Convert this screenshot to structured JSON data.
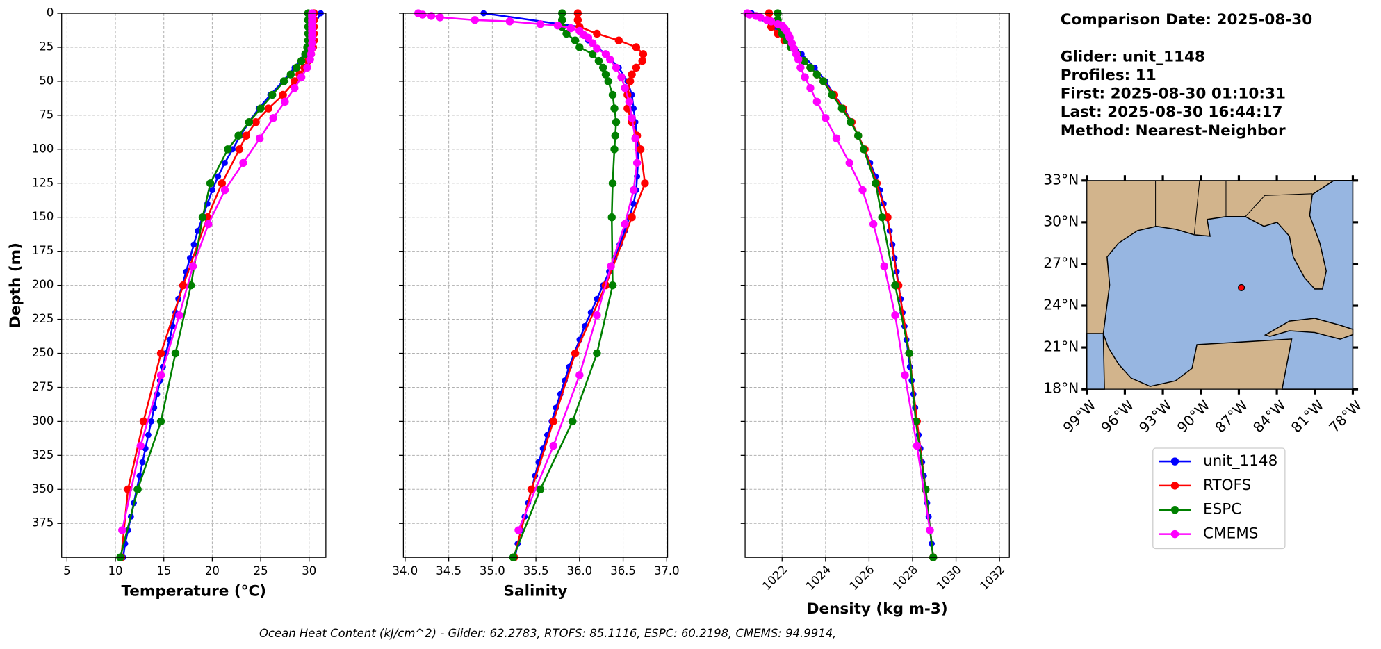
{
  "chart_data": [
    {
      "type": "line",
      "xlabel": "Temperature (°C)",
      "ylabel": "Depth (m)",
      "xlim": [
        4.45,
        31.73
      ],
      "xticks": [
        5,
        10,
        15,
        20,
        25,
        30
      ],
      "ylim": [
        400,
        0
      ],
      "yticks": [
        0,
        25,
        50,
        75,
        100,
        125,
        150,
        175,
        200,
        225,
        250,
        275,
        300,
        325,
        350,
        375
      ],
      "ytick_labels": true,
      "grid": true,
      "xtick_rotation": 0,
      "series": [
        {
          "name": "unit_1148",
          "color": "#0000ff",
          "y": [
            0,
            10,
            20,
            30,
            40,
            50,
            60,
            70,
            80,
            90,
            100,
            110,
            120,
            130,
            140,
            150,
            160,
            170,
            180,
            190,
            200,
            210,
            220,
            230,
            240,
            250,
            260,
            270,
            280,
            290,
            300,
            310,
            320,
            330,
            340,
            350,
            360,
            370,
            380,
            390,
            400
          ],
          "values": [
            31.2,
            30.4,
            30.2,
            29.5,
            28.5,
            27.3,
            26,
            24.8,
            23.8,
            22.9,
            22.1,
            21.3,
            20.6,
            20,
            19.5,
            19,
            18.5,
            18.1,
            17.7,
            17.3,
            16.9,
            16.5,
            16.2,
            15.9,
            15.6,
            15.2,
            14.9,
            14.6,
            14.3,
            14,
            13.7,
            13.4,
            13.1,
            12.8,
            12.5,
            12.2,
            11.9,
            11.6,
            11.3,
            11.0,
            10.8
          ]
        },
        {
          "name": "RTOFS",
          "color": "#ff0000",
          "y": [
            0,
            5,
            10,
            15,
            20,
            25,
            30,
            35,
            40,
            45,
            50,
            60,
            70,
            80,
            90,
            100,
            125,
            150,
            200,
            250,
            300,
            350,
            400
          ],
          "values": [
            30.5,
            30.5,
            30.5,
            30.5,
            30.5,
            30.4,
            30.2,
            29.9,
            29.5,
            29.0,
            28.5,
            27.3,
            25.8,
            24.5,
            23.5,
            22.8,
            21,
            19.5,
            17,
            14.7,
            12.9,
            11.3,
            10.6
          ]
        },
        {
          "name": "ESPC",
          "color": "#008000",
          "y": [
            0,
            5,
            10,
            15,
            20,
            25,
            30,
            35,
            40,
            45,
            50,
            60,
            70,
            80,
            90,
            100,
            125,
            150,
            200,
            250,
            300,
            350,
            400
          ],
          "values": [
            29.9,
            29.9,
            29.9,
            29.9,
            29.9,
            29.8,
            29.6,
            29.2,
            28.7,
            28.1,
            27.4,
            26.2,
            25,
            23.8,
            22.7,
            21.6,
            19.8,
            19,
            17.8,
            16.2,
            14.7,
            12.3,
            10.5
          ]
        },
        {
          "name": "CMEMS",
          "color": "#ff00ff",
          "y": [
            0,
            1,
            2,
            3,
            5,
            6,
            8,
            9,
            11,
            13,
            16,
            18,
            22,
            26,
            30,
            34,
            40,
            47,
            55,
            65,
            77,
            92,
            110,
            130,
            155,
            186,
            222,
            266,
            318,
            380
          ],
          "values": [
            30.3,
            30.3,
            30.3,
            30.3,
            30.3,
            30.3,
            30.3,
            30.3,
            30.3,
            30.3,
            30.3,
            30.3,
            30.3,
            30.25,
            30.2,
            30.1,
            29.8,
            29.2,
            28.5,
            27.5,
            26.3,
            24.9,
            23.2,
            21.3,
            19.6,
            18,
            16.6,
            14.7,
            12.6,
            10.7
          ]
        }
      ]
    },
    {
      "type": "line",
      "xlabel": "Salinity",
      "xlim": [
        33.98,
        37.01
      ],
      "xticks": [
        {
          "value": 34,
          "label": "34.0"
        },
        34.5,
        {
          "value": 35,
          "label": "35.0"
        },
        35.5,
        {
          "value": 36,
          "label": "36.0"
        },
        36.5,
        {
          "value": 37,
          "label": "37.0"
        }
      ],
      "ylim": [
        400,
        0
      ],
      "yticks": [
        0,
        25,
        50,
        75,
        100,
        125,
        150,
        175,
        200,
        225,
        250,
        275,
        300,
        325,
        350,
        375
      ],
      "ytick_labels": false,
      "grid": true,
      "xtick_rotation": 0,
      "series": [
        {
          "color": "#0000ff",
          "values": [
            34.9,
            36.0,
            36.1,
            36.3,
            36.45,
            36.55,
            36.6,
            36.62,
            36.64,
            36.66,
            36.67,
            36.67,
            36.66,
            36.65,
            36.62,
            36.57,
            36.52,
            36.46,
            36.4,
            36.34,
            36.27,
            36.2,
            36.13,
            36.06,
            36.0,
            35.94,
            35.88,
            35.83,
            35.78,
            35.73,
            35.68,
            35.63,
            35.58,
            35.53,
            35.49,
            35.45,
            35.41,
            35.37,
            35.33,
            35.29,
            35.26
          ]
        },
        {
          "color": "#ff0000",
          "values": [
            35.98,
            35.98,
            36.0,
            36.2,
            36.45,
            36.65,
            36.73,
            36.72,
            36.65,
            36.6,
            36.58,
            36.55,
            36.55,
            36.6,
            36.66,
            36.7,
            36.75,
            36.6,
            36.3,
            35.95,
            35.7,
            35.45,
            35.25
          ]
        },
        {
          "color": "#008000",
          "values": [
            35.8,
            35.8,
            35.8,
            35.85,
            35.95,
            36.0,
            36.15,
            36.22,
            36.27,
            36.3,
            36.33,
            36.38,
            36.4,
            36.42,
            36.41,
            36.4,
            36.38,
            36.37,
            36.38,
            36.2,
            35.92,
            35.55,
            35.24
          ]
        },
        {
          "color": "#ff00ff",
          "values": [
            34.15,
            34.2,
            34.3,
            34.4,
            34.8,
            35.2,
            35.55,
            35.75,
            35.9,
            36.0,
            36.05,
            36.1,
            36.15,
            36.2,
            36.3,
            36.35,
            36.42,
            36.48,
            36.52,
            36.57,
            36.6,
            36.64,
            36.66,
            36.62,
            36.52,
            36.36,
            36.2,
            36.0,
            35.7,
            35.3
          ]
        }
      ]
    },
    {
      "type": "line",
      "xlabel": "Density (kg m-3)",
      "xlim": [
        1020.3,
        1032.45
      ],
      "xticks": [
        1022,
        1024,
        1026,
        1028,
        1030,
        1032
      ],
      "ylim": [
        400,
        0
      ],
      "yticks": [
        0,
        25,
        50,
        75,
        100,
        125,
        150,
        175,
        200,
        225,
        250,
        275,
        300,
        325,
        350,
        375
      ],
      "ytick_labels": false,
      "grid": true,
      "xtick_rotation": 45,
      "series": [
        {
          "color": "#0000ff",
          "values": [
            1020.6,
            1021.6,
            1022.3,
            1022.9,
            1023.5,
            1024.0,
            1024.4,
            1024.85,
            1025.2,
            1025.5,
            1025.8,
            1026.05,
            1026.3,
            1026.5,
            1026.67,
            1026.82,
            1026.95,
            1027.07,
            1027.17,
            1027.27,
            1027.36,
            1027.45,
            1027.54,
            1027.63,
            1027.72,
            1027.8,
            1027.88,
            1027.96,
            1028.04,
            1028.12,
            1028.2,
            1028.28,
            1028.36,
            1028.44,
            1028.52,
            1028.6,
            1028.67,
            1028.74,
            1028.81,
            1028.88,
            1028.95
          ]
        },
        {
          "color": "#ff0000",
          "values": [
            1021.4,
            1021.4,
            1021.5,
            1021.8,
            1022.1,
            1022.4,
            1022.7,
            1023.0,
            1023.3,
            1023.6,
            1023.9,
            1024.4,
            1024.8,
            1025.2,
            1025.5,
            1025.8,
            1026.35,
            1026.85,
            1027.35,
            1027.85,
            1028.2,
            1028.6,
            1028.95
          ]
        },
        {
          "color": "#008000",
          "values": [
            1021.8,
            1021.8,
            1021.9,
            1022.0,
            1022.2,
            1022.4,
            1022.7,
            1023.0,
            1023.3,
            1023.6,
            1023.9,
            1024.3,
            1024.75,
            1025.15,
            1025.5,
            1025.75,
            1026.3,
            1026.6,
            1027.2,
            1027.85,
            1028.15,
            1028.6,
            1028.95
          ]
        },
        {
          "color": "#ff00ff",
          "values": [
            1020.4,
            1020.5,
            1020.8,
            1021.0,
            1021.3,
            1021.5,
            1021.8,
            1022.0,
            1022.1,
            1022.2,
            1022.3,
            1022.35,
            1022.45,
            1022.55,
            1022.65,
            1022.75,
            1022.85,
            1023.05,
            1023.3,
            1023.6,
            1024.0,
            1024.5,
            1025.1,
            1025.7,
            1026.2,
            1026.7,
            1027.2,
            1027.65,
            1028.2,
            1028.8
          ]
        }
      ]
    },
    {
      "type": "map",
      "xlim": [
        -99,
        -78
      ],
      "ylim": [
        18,
        33
      ],
      "xticks": [
        {
          "value": -99,
          "label": "99°W"
        },
        {
          "value": -96,
          "label": "96°W"
        },
        {
          "value": -93,
          "label": "93°W"
        },
        {
          "value": -90,
          "label": "90°W"
        },
        {
          "value": -87,
          "label": "87°W"
        },
        {
          "value": -84,
          "label": "84°W"
        },
        {
          "value": -81,
          "label": "81°W"
        },
        {
          "value": -78,
          "label": "78°W"
        }
      ],
      "yticks": [
        {
          "value": 18,
          "label": "18°N"
        },
        {
          "value": 21,
          "label": "21°N"
        },
        {
          "value": 24,
          "label": "24°N"
        },
        {
          "value": 27,
          "label": "27°N"
        },
        {
          "value": 30,
          "label": "30°N"
        },
        {
          "value": 33,
          "label": "33°N"
        }
      ],
      "points": {
        "lon": [
          -86.8
        ],
        "lat": [
          25.3
        ],
        "color": "#ff0000"
      }
    }
  ],
  "info": {
    "title": "Comparison Date: 2025-08-30",
    "lines": [
      "Glider: unit_1148",
      "Profiles: 11",
      "First: 2025-08-30 01:10:31",
      "Last: 2025-08-30 16:44:17",
      "Method: Nearest-Neighbor"
    ]
  },
  "footer": "Ocean Heat Content (kJ/cm^2) - Glider: 62.2783,  RTOFS: 85.1116,  ESPC: 60.2198,  CMEMS: 94.9914,"
}
